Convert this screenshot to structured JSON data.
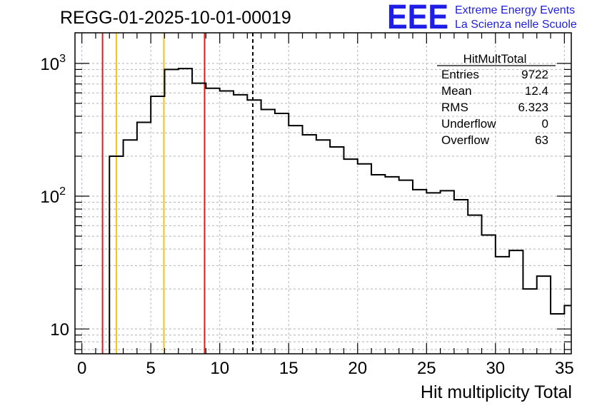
{
  "chart_data": {
    "type": "histogram",
    "title": "REGG-01-2025-10-01-00019",
    "xlabel": "Hit multiplicity Total",
    "ylabel": "",
    "xlim": [
      -0.5,
      35.5
    ],
    "ylim": [
      6.5,
      1700
    ],
    "yscale": "log",
    "x_ticks": [
      0,
      5,
      10,
      15,
      20,
      25,
      30,
      35
    ],
    "y_ticks": [
      {
        "value": 10,
        "label": "10"
      },
      {
        "value": 100,
        "label": "10",
        "exp": "2"
      },
      {
        "value": 1000,
        "label": "10",
        "exp": "3"
      }
    ],
    "bin_width": 1,
    "bins": [
      {
        "x": 2.5,
        "count": 200
      },
      {
        "x": 3.5,
        "count": 265
      },
      {
        "x": 4.5,
        "count": 360
      },
      {
        "x": 5.5,
        "count": 565
      },
      {
        "x": 6.5,
        "count": 900
      },
      {
        "x": 7.5,
        "count": 915
      },
      {
        "x": 8.5,
        "count": 710
      },
      {
        "x": 9.5,
        "count": 650
      },
      {
        "x": 10.5,
        "count": 620
      },
      {
        "x": 11.5,
        "count": 580
      },
      {
        "x": 12.5,
        "count": 530
      },
      {
        "x": 13.5,
        "count": 450
      },
      {
        "x": 14.5,
        "count": 420
      },
      {
        "x": 15.5,
        "count": 340
      },
      {
        "x": 16.5,
        "count": 290
      },
      {
        "x": 17.5,
        "count": 265
      },
      {
        "x": 18.5,
        "count": 235
      },
      {
        "x": 19.5,
        "count": 190
      },
      {
        "x": 20.5,
        "count": 175
      },
      {
        "x": 21.5,
        "count": 145
      },
      {
        "x": 22.5,
        "count": 140
      },
      {
        "x": 23.5,
        "count": 132
      },
      {
        "x": 24.5,
        "count": 112
      },
      {
        "x": 25.5,
        "count": 106
      },
      {
        "x": 26.5,
        "count": 110
      },
      {
        "x": 27.5,
        "count": 94
      },
      {
        "x": 28.5,
        "count": 72
      },
      {
        "x": 29.5,
        "count": 51
      },
      {
        "x": 30.5,
        "count": 35
      },
      {
        "x": 31.5,
        "count": 39
      },
      {
        "x": 32.5,
        "count": 20
      },
      {
        "x": 33.5,
        "count": 25
      },
      {
        "x": 34.5,
        "count": 13
      },
      {
        "x": 35.5,
        "count": 15
      }
    ],
    "vertical_lines": [
      {
        "x": 1.5,
        "color": "#e11b1b",
        "style": "solid"
      },
      {
        "x": 2.5,
        "color": "#f0c21c",
        "style": "solid"
      },
      {
        "x": 5.95,
        "color": "#f0c21c",
        "style": "solid"
      },
      {
        "x": 8.9,
        "color": "#e11b1b",
        "style": "solid"
      },
      {
        "x": 12.4,
        "color": "#000000",
        "style": "dashed"
      }
    ],
    "grid": true,
    "stats_box": {
      "title": "HitMultTotal",
      "placement": "top-right",
      "rows": [
        {
          "label": "Entries",
          "value": "9722"
        },
        {
          "label": "Mean",
          "value": "12.4"
        },
        {
          "label": "RMS",
          "value": "6.323"
        },
        {
          "label": "Underflow",
          "value": "0"
        },
        {
          "label": "Overflow",
          "value": "63"
        }
      ]
    }
  },
  "logo": {
    "letters": "EEE",
    "line1": "Extreme Energy Events",
    "line2": "La Scienza nelle Scuole",
    "color": "#1e1ee6"
  }
}
